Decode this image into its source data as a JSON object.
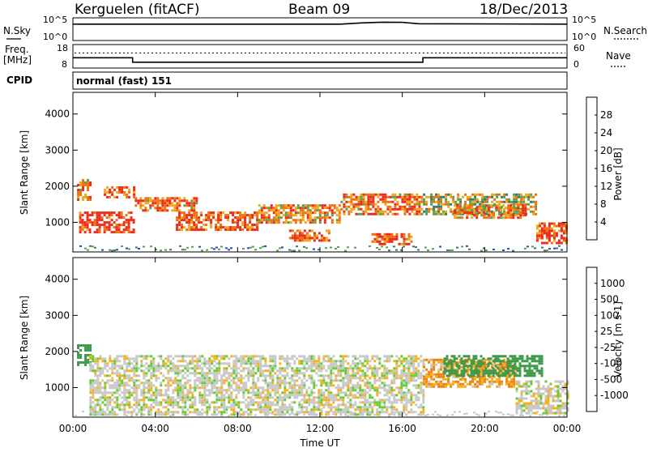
{
  "header": {
    "station": "Kerguelen (fitACF)",
    "beam": "Beam 09",
    "date": "18/Dec/2013"
  },
  "nsky_panel": {
    "left_label": "N.Sky",
    "left_ticks": [
      "10^5",
      "10^0"
    ],
    "right_label": "N.Search",
    "right_ticks": [
      "10^5",
      "10^0"
    ]
  },
  "freq_panel": {
    "left_label_1": "Freq.",
    "left_label_2": "[MHz]",
    "left_ticks": [
      "18",
      "8"
    ],
    "right_label": "Nave",
    "right_ticks": [
      "60",
      "0"
    ]
  },
  "cpid_panel": {
    "label": "CPID",
    "mode_text": "normal (fast) 151"
  },
  "power_panel": {
    "ylabel": "Slant Range [km]",
    "y_ticks": [
      "4000",
      "3000",
      "2000",
      "1000"
    ],
    "colorbar_label": "Power [dB]",
    "colorbar_ticks": [
      "28",
      "24",
      "20",
      "16",
      "12",
      "8",
      "4"
    ],
    "colors": [
      "#1a1aee",
      "#2250b4",
      "#3a7a6a",
      "#5aa050",
      "#f0a818",
      "#f07010",
      "#ee2a1a"
    ]
  },
  "velocity_panel": {
    "ylabel": "Slant Range [km]",
    "y_ticks": [
      "4000",
      "3000",
      "2000",
      "1000"
    ],
    "colorbar_label": "Velocity [m s-1]",
    "colorbar_ticks": [
      "1000",
      "500",
      "100",
      "25",
      "-25",
      "-100",
      "-500",
      "-1000"
    ],
    "colors": [
      "#1a2fc0",
      "#1e7a4a",
      "#3c9a48",
      "#64cc32",
      "#c8c8c8",
      "#f2b21e",
      "#f08012",
      "#f04c14",
      "#e81a14"
    ]
  },
  "x_axis": {
    "label": "Time UT",
    "ticks": [
      "00:00",
      "04:00",
      "08:00",
      "12:00",
      "16:00",
      "20:00",
      "00:00"
    ]
  },
  "chart_data": {
    "type": "heatmap",
    "title": "Kerguelen (fitACF)",
    "xlabel": "Time UT",
    "ylabel": "Slant Range [km]",
    "x_range_hours": [
      0,
      24
    ],
    "y_range_km": [
      180,
      4600
    ],
    "nsky_profile": [
      [
        0,
        3.8
      ],
      [
        13.0,
        3.8
      ],
      [
        14.0,
        4.1
      ],
      [
        15.0,
        4.3
      ],
      [
        16.0,
        4.25
      ],
      [
        16.8,
        3.9
      ],
      [
        24,
        3.8
      ]
    ],
    "freq_profile": [
      [
        0,
        12.3
      ],
      [
        2.9,
        12.3
      ],
      [
        2.9,
        10.1
      ],
      [
        17.0,
        10.1
      ],
      [
        17.0,
        12.3
      ],
      [
        24,
        12.3
      ]
    ],
    "nave_level": 40,
    "power_bands": [
      {
        "t0": 0.2,
        "t1": 0.9,
        "r0": 1650,
        "r1": 2200,
        "v": 22
      },
      {
        "t0": 1.5,
        "t1": 3.0,
        "r0": 1700,
        "r1": 2000,
        "v": 24
      },
      {
        "t0": 0.3,
        "t1": 3.0,
        "r0": 700,
        "r1": 1300,
        "v": 26
      },
      {
        "t0": 3.0,
        "t1": 6.0,
        "r0": 1300,
        "r1": 1700,
        "v": 22
      },
      {
        "t0": 5.0,
        "t1": 9.0,
        "r0": 800,
        "r1": 1300,
        "v": 24
      },
      {
        "t0": 9.0,
        "t1": 13.0,
        "r0": 1000,
        "r1": 1500,
        "v": 20
      },
      {
        "t0": 10.5,
        "t1": 12.5,
        "r0": 500,
        "r1": 800,
        "v": 24
      },
      {
        "t0": 13.0,
        "t1": 17.0,
        "r0": 1200,
        "r1": 1800,
        "v": 22
      },
      {
        "t0": 14.5,
        "t1": 16.5,
        "r0": 400,
        "r1": 700,
        "v": 24
      },
      {
        "t0": 17.0,
        "t1": 22.5,
        "r0": 1200,
        "r1": 1800,
        "v": 16
      },
      {
        "t0": 18.5,
        "t1": 22.0,
        "r0": 1100,
        "r1": 1500,
        "v": 22
      },
      {
        "t0": 22.5,
        "t1": 24.0,
        "r0": 400,
        "r1": 1000,
        "v": 24
      }
    ],
    "velocity_bands": [
      {
        "t0": 0.2,
        "t1": 0.9,
        "r0": 1600,
        "r1": 2200,
        "v": 100
      },
      {
        "t0": 0.8,
        "t1": 17.0,
        "r0": 250,
        "r1": 1900,
        "v": 0
      },
      {
        "t0": 17.0,
        "t1": 21.5,
        "r0": 1000,
        "r1": 1800,
        "v": -60
      },
      {
        "t0": 18.0,
        "t1": 22.8,
        "r0": 1300,
        "r1": 1900,
        "v": 150
      },
      {
        "t0": 21.5,
        "t1": 24.0,
        "r0": 300,
        "r1": 1200,
        "v": 0
      }
    ]
  }
}
